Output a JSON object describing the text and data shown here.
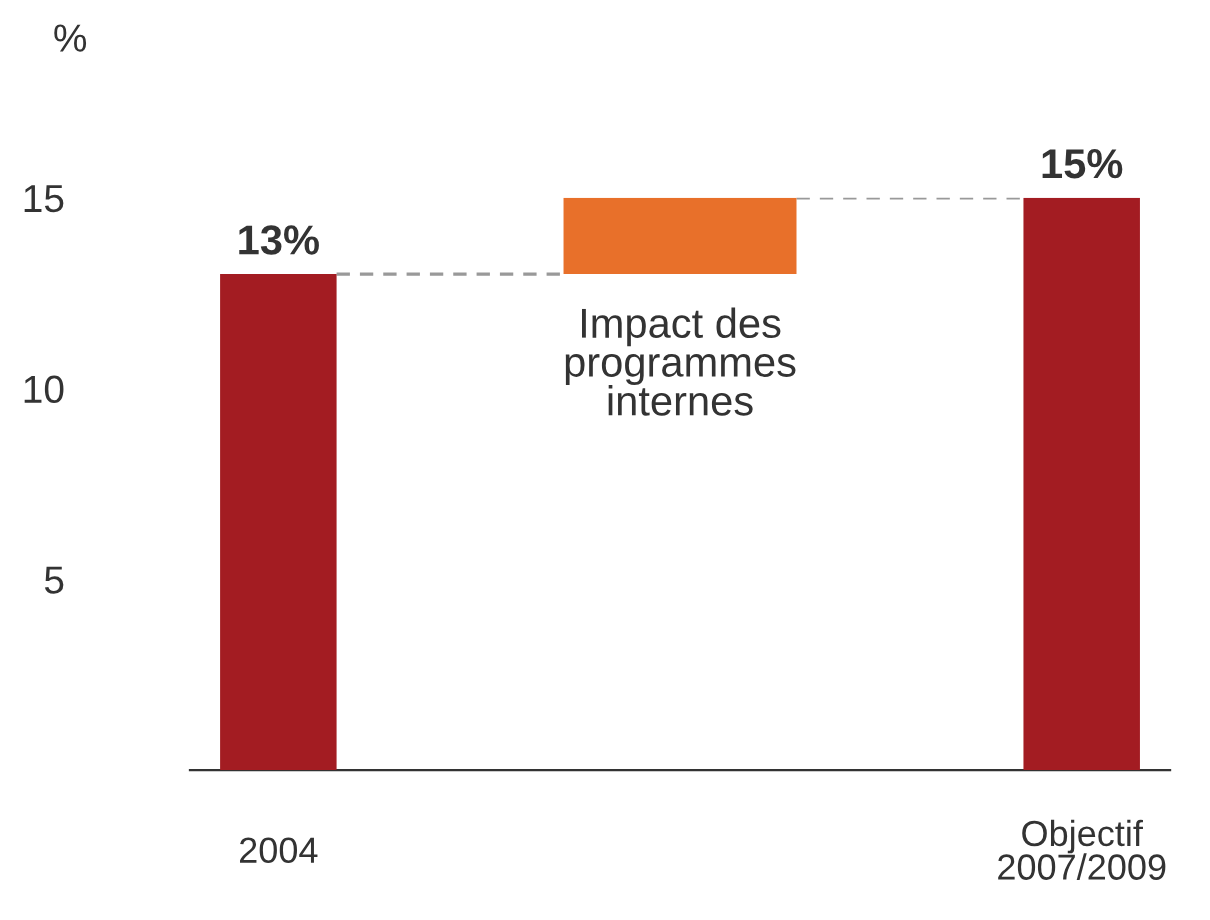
{
  "chart_data": {
    "type": "bar",
    "ylabel": "%",
    "categories": [
      "2004",
      "Impact des programmes internes",
      "Objectif 2007/2009"
    ],
    "values": [
      13,
      2,
      15
    ],
    "base": [
      0,
      13,
      0
    ],
    "colors": [
      "#a31c22",
      "#e8702a",
      "#a31c22"
    ],
    "value_labels": [
      "13%",
      null,
      "15%"
    ],
    "ylim": [
      0,
      15
    ],
    "yticks": [
      5,
      10,
      15
    ],
    "grid": false,
    "legend": false
  }
}
